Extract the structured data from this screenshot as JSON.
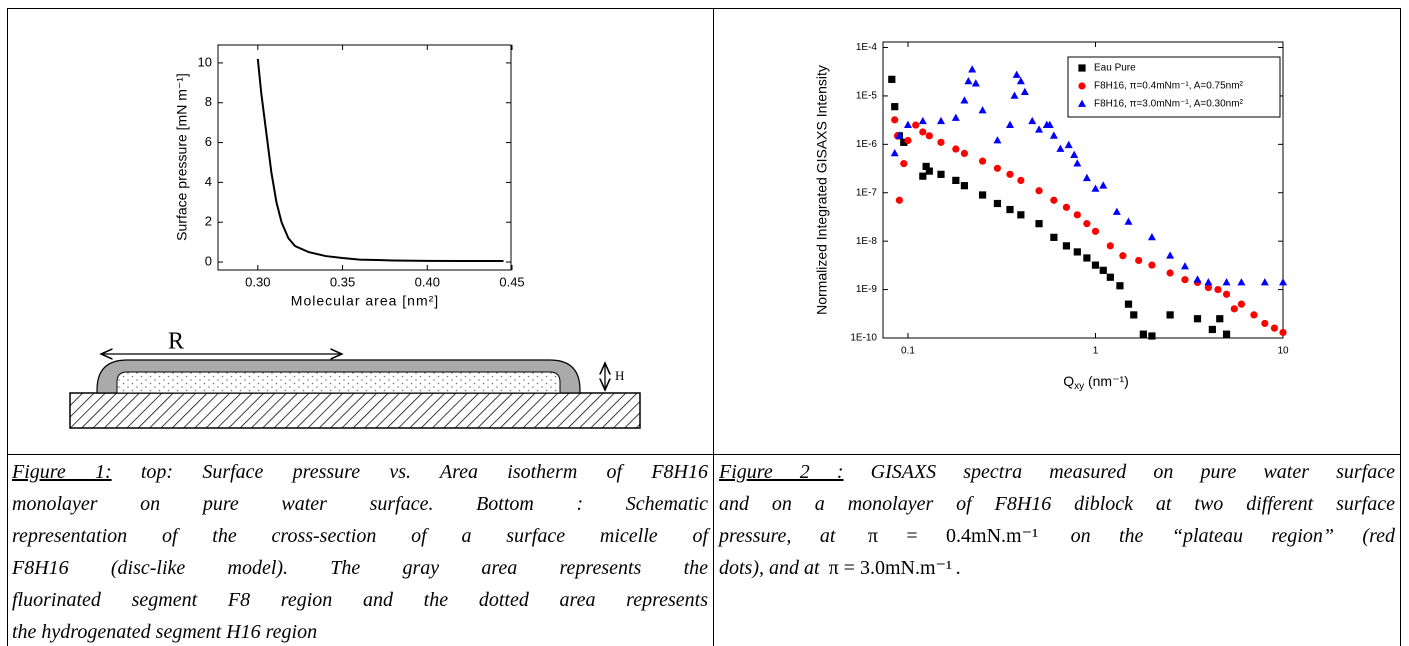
{
  "chart_data": [
    {
      "type": "line",
      "color": "#000000",
      "xlabel": "Molecular area [nm²]",
      "ylabel": "Surface pressure [mN m⁻¹]",
      "x": [
        0.3,
        0.302,
        0.305,
        0.308,
        0.311,
        0.314,
        0.318,
        0.322,
        0.33,
        0.34,
        0.35,
        0.36,
        0.38,
        0.4,
        0.42,
        0.445
      ],
      "values": [
        10.2,
        8.5,
        6.5,
        4.5,
        3.0,
        2.0,
        1.2,
        0.8,
        0.5,
        0.3,
        0.2,
        0.12,
        0.08,
        0.06,
        0.05,
        0.05
      ],
      "xlim": [
        0.2765,
        0.4494
      ],
      "ylim": [
        -0.4,
        10.9
      ],
      "xticks": [
        {
          "value": 0.3,
          "label": "0.30"
        },
        0.35,
        {
          "value": 0.4,
          "label": "0.40"
        },
        0.45
      ],
      "yticks": [
        0,
        2,
        4,
        6,
        8,
        10
      ],
      "log_x": false,
      "log_y": false
    },
    {
      "type": "scatter",
      "xlabel": [
        "Q",
        "xy",
        " (nm⁻¹)"
      ],
      "ylabel": "Normalized Integrated GISAXS Intensity",
      "xlim": [
        0.0736,
        10
      ],
      "ylim": [
        1e-10,
        0.00013
      ],
      "log_x": true,
      "log_y": true,
      "legend": "upper right",
      "xticks": [
        0.1,
        1,
        10
      ],
      "yticks": [
        {
          "value": 1e-10,
          "label": "1E-10"
        },
        {
          "value": 1e-09,
          "label": "1E-9"
        },
        {
          "value": 1e-08,
          "label": "1E-8"
        },
        {
          "value": 1e-07,
          "label": "1E-7"
        },
        {
          "value": 1e-06,
          "label": "1E-6"
        },
        {
          "value": 1e-05,
          "label": "1E-5"
        },
        {
          "value": 0.0001,
          "label": "1E-4"
        }
      ],
      "series": [
        {
          "name": "Eau Pure",
          "color": "#000000",
          "marker": "square",
          "x": [
            0.082,
            0.085,
            0.09,
            0.095,
            0.12,
            0.125,
            0.13,
            0.15,
            0.18,
            0.2,
            0.25,
            0.3,
            0.35,
            0.4,
            0.5,
            0.6,
            0.7,
            0.8,
            0.9,
            1.0,
            1.1,
            1.2,
            1.35,
            1.5,
            1.6,
            1.8,
            2.0,
            2.5,
            3.5,
            4.2,
            4.6,
            5.0
          ],
          "values": [
            2.2e-05,
            6e-06,
            1.5e-06,
            1.1e-06,
            2.2e-07,
            3.5e-07,
            2.8e-07,
            2.4e-07,
            1.8e-07,
            1.4e-07,
            9e-08,
            6e-08,
            4.5e-08,
            3.5e-08,
            2.3e-08,
            1.2e-08,
            8e-09,
            6e-09,
            4.5e-09,
            3.2e-09,
            2.5e-09,
            1.8e-09,
            1.2e-09,
            5e-10,
            3e-10,
            1.2e-10,
            1.1e-10,
            3e-10,
            2.5e-10,
            1.5e-10,
            2.5e-10,
            1.2e-10
          ]
        },
        {
          "name": "F8H16, π=0.4mNm⁻¹, A=0.75nm²",
          "color": "#ff0000",
          "marker": "circle",
          "x": [
            0.085,
            0.088,
            0.09,
            0.095,
            0.1,
            0.11,
            0.12,
            0.13,
            0.15,
            0.18,
            0.2,
            0.25,
            0.3,
            0.35,
            0.4,
            0.5,
            0.6,
            0.7,
            0.8,
            0.9,
            1.0,
            1.2,
            1.4,
            1.7,
            2.0,
            2.5,
            3.0,
            3.5,
            4.0,
            4.5,
            5.0,
            5.5,
            6.0,
            7.0,
            8.0,
            9.0,
            10.0
          ],
          "values": [
            3.2e-06,
            1.5e-06,
            7e-08,
            4e-07,
            1.2e-06,
            2.5e-06,
            1.8e-06,
            1.5e-06,
            1.1e-06,
            8e-07,
            6.5e-07,
            4.5e-07,
            3.2e-07,
            2.4e-07,
            1.8e-07,
            1.1e-07,
            7e-08,
            5e-08,
            3.5e-08,
            2.3e-08,
            1.6e-08,
            8e-09,
            5e-09,
            4e-09,
            3.2e-09,
            2.2e-09,
            1.6e-09,
            1.4e-09,
            1.1e-09,
            1e-09,
            8e-10,
            4e-10,
            5e-10,
            3e-10,
            2e-10,
            1.6e-10,
            1.3e-10
          ]
        },
        {
          "name": "F8H16, π=3.0mNm⁻¹, A=0.30nm²",
          "color": "#0000ff",
          "marker": "triangle",
          "x": [
            0.085,
            0.09,
            0.1,
            0.12,
            0.15,
            0.18,
            0.2,
            0.21,
            0.22,
            0.23,
            0.25,
            0.3,
            0.35,
            0.37,
            0.38,
            0.4,
            0.42,
            0.46,
            0.5,
            0.55,
            0.57,
            0.6,
            0.65,
            0.72,
            0.77,
            0.8,
            0.9,
            1.0,
            1.1,
            1.3,
            1.5,
            2.0,
            2.5,
            3.0,
            3.5,
            4.0,
            5.0,
            6.0,
            8.0,
            10.0
          ],
          "values": [
            6.5e-07,
            1.5e-06,
            2.5e-06,
            3e-06,
            3e-06,
            3.5e-06,
            8e-06,
            2e-05,
            3.5e-05,
            1.8e-05,
            5e-06,
            1.2e-06,
            2.5e-06,
            1e-05,
            2.7e-05,
            2e-05,
            1.2e-05,
            3e-06,
            2e-06,
            2.5e-06,
            2.5e-06,
            1.5e-06,
            8e-07,
            9.6e-07,
            6e-07,
            4e-07,
            2e-07,
            1.2e-07,
            1.4e-07,
            4e-08,
            2.5e-08,
            1.2e-08,
            5e-09,
            3e-09,
            1.6e-09,
            1.4e-09,
            1.4e-09,
            1.4e-09,
            1.4e-09,
            1.4e-09
          ]
        }
      ]
    }
  ],
  "diagram": {
    "radius_label": "R",
    "height_label": "H"
  },
  "captions": [
    {
      "label": "Figure 1:",
      "lines": [
        " top: Surface pressure vs. Area isotherm of F8H16",
        "monolayer on pure water surface. Bottom : Schematic",
        "representation of the cross-section of a surface micelle of",
        "F8H16 (disc-like model). The gray area represents the",
        "fluorinated segment F8 region and the dotted area represents",
        "the hydrogenated segment H16 region"
      ]
    },
    {
      "label": "Figure 2 :",
      "lines": [
        " GISAXS spectra measured on pure water surface",
        "and on a monolayer of F8H16 diblock at two different surface"
      ],
      "line3": [
        "pressure, at ",
        "π = 0.4mN.m⁻¹",
        " on the “plateau region” (red"
      ],
      "line4": [
        "dots), and at ",
        "π = 3.0mN.m⁻¹",
        "."
      ]
    }
  ]
}
